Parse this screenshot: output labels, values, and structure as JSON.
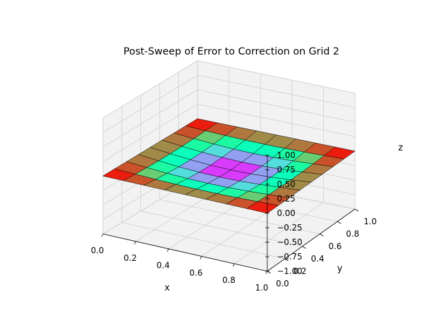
{
  "chart_data": {
    "type": "surface3d",
    "title": "Post-Sweep of Error to Correction on Grid 2",
    "xlabel": "x",
    "ylabel": "y",
    "zlabel": "z",
    "xlim": [
      0,
      1
    ],
    "ylim": [
      0,
      1
    ],
    "zlim": [
      -1,
      1
    ],
    "x_ticks": [
      "0.0",
      "0.2",
      "0.4",
      "0.6",
      "0.8",
      "1.0"
    ],
    "y_ticks": [
      "0.0",
      "0.2",
      "0.4",
      "0.6",
      "0.8",
      "1.0"
    ],
    "z_ticks": [
      "−1.00",
      "−0.75",
      "−0.50",
      "−0.25",
      "0.00",
      "0.25",
      "0.50",
      "0.75",
      "1.00"
    ],
    "grid": true,
    "colormap": "rainbow",
    "grid_nodes": 9,
    "surface": "z ≈ -0.09·sin(πx)·sin(πy)",
    "z_min": -0.09,
    "z_max": 0.0
  }
}
